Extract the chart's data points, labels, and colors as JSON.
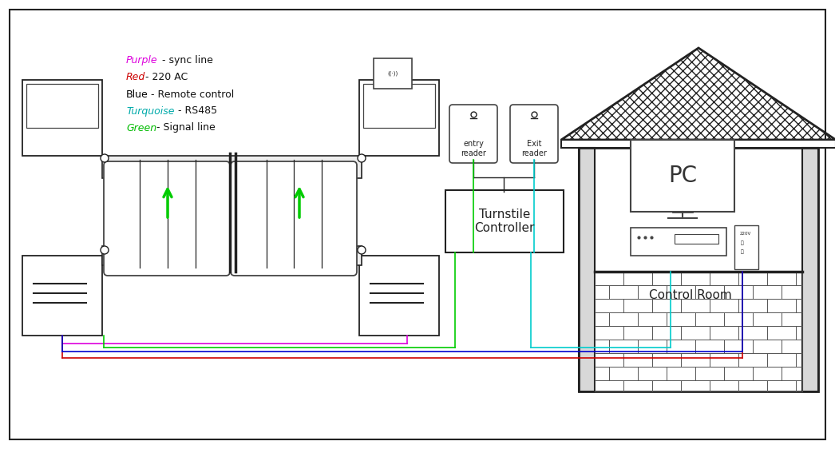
{
  "bg_color": "#ffffff",
  "lc_purple": "#dd00dd",
  "lc_red": "#cc0000",
  "lc_blue": "#0000cc",
  "lc_turquoise": "#00cccc",
  "lc_green": "#00cc00",
  "legend_items": [
    {
      "color": "#dd00dd",
      "label": "Purple",
      "desc": " - sync line"
    },
    {
      "color": "#cc0000",
      "label": "Red",
      "desc": " - 220 AC"
    },
    {
      "color": "#000000",
      "label": "Blue",
      "desc": " - Remote control"
    },
    {
      "color": "#00aaaa",
      "label": "Turquoise",
      "desc": " - RS485"
    },
    {
      "color": "#00bb00",
      "label": "Green",
      "desc": " - Signal line"
    }
  ]
}
